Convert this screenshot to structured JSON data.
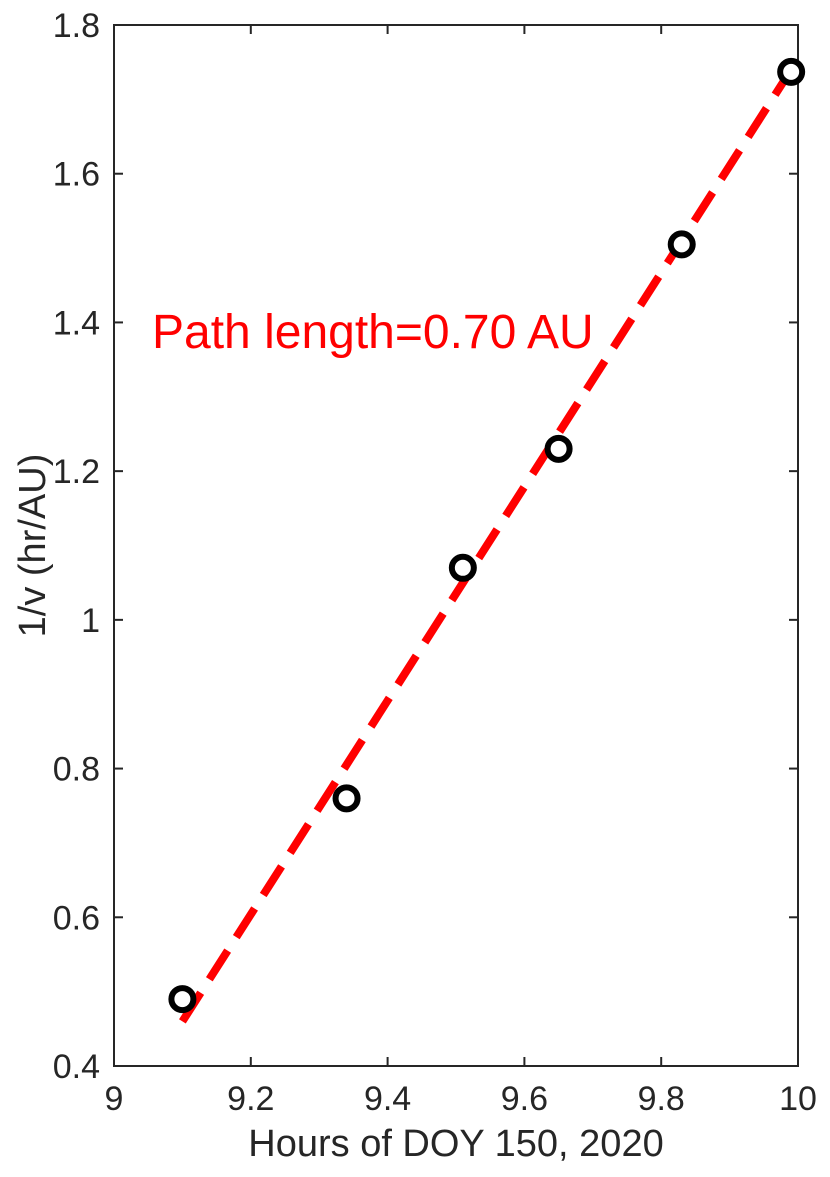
{
  "chart_data": {
    "type": "scatter",
    "title": "",
    "xlabel": "Hours of DOY 150, 2020",
    "ylabel": "1/v  (hr/AU)",
    "xlim": [
      9,
      10
    ],
    "ylim": [
      0.4,
      1.8
    ],
    "xticks": [
      9,
      9.2,
      9.4,
      9.6,
      9.8,
      10
    ],
    "xtick_labels": [
      "9",
      "9.2",
      "9.4",
      "9.6",
      "9.8",
      "10"
    ],
    "yticks": [
      0.4,
      0.6,
      0.8,
      1.0,
      1.2,
      1.4,
      1.6,
      1.8
    ],
    "ytick_labels": [
      "0.4",
      "0.6",
      "0.8",
      "1",
      "1.2",
      "1.4",
      "1.6",
      "1.8"
    ],
    "grid": false,
    "series": [
      {
        "marker": "open-circle",
        "color": "#000000",
        "x": [
          9.1,
          9.34,
          9.51,
          9.65,
          9.83,
          9.99
        ],
        "y": [
          0.49,
          0.76,
          1.07,
          1.23,
          1.505,
          1.737
        ]
      }
    ],
    "fit_line": {
      "style": "dashed",
      "color": "#ff0000",
      "x": [
        9.1,
        9.99
      ],
      "y": [
        0.46,
        1.74
      ]
    },
    "annotations": [
      {
        "text": "Path length=0.70 AU",
        "color": "#ff0000"
      }
    ]
  }
}
